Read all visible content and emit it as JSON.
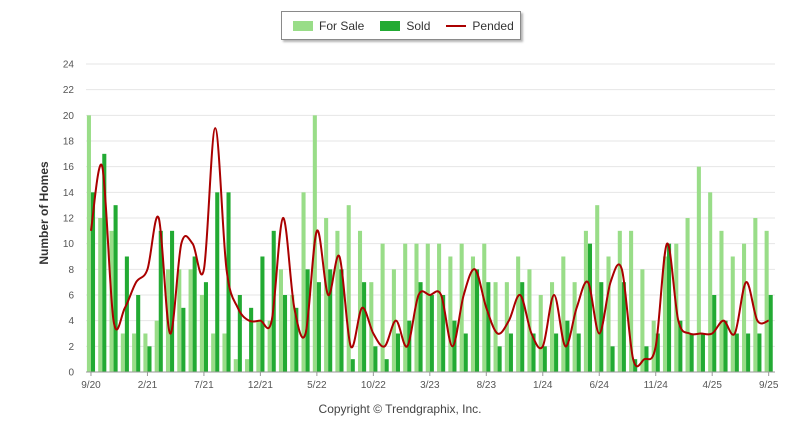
{
  "chart_data": {
    "type": "bar",
    "ylabel": "Number of Homes",
    "ylim": [
      0,
      24
    ],
    "yticks": [
      0,
      2,
      4,
      6,
      8,
      10,
      12,
      14,
      16,
      18,
      20,
      22,
      24
    ],
    "xtick_labels": [
      "9/20",
      "2/21",
      "7/21",
      "12/21",
      "5/22",
      "10/22",
      "3/23",
      "8/23",
      "1/24",
      "6/24",
      "11/24",
      "4/25",
      "9/25"
    ],
    "categories": [
      "Sep 2020",
      "Oct 2020",
      "Nov 2020",
      "Dec 2020",
      "Jan 2021",
      "Feb 2021",
      "Mar 2021",
      "Apr 2021",
      "May 2021",
      "Jun 2021",
      "Jul 2021",
      "Aug 2021",
      "Sep 2021",
      "Oct 2021",
      "Nov 2021",
      "Dec 2021",
      "Jan 2022",
      "Feb 2022",
      "Mar 2022",
      "Apr 2022",
      "May 2022",
      "Jun 2022",
      "Jul 2022",
      "Aug 2022",
      "Sep 2022",
      "Oct 2022",
      "Nov 2022",
      "Dec 2022",
      "Jan 2023",
      "Feb 2023",
      "Mar 2023",
      "Apr 2023",
      "May 2023",
      "Jun 2023",
      "Jul 2023",
      "Aug 2023",
      "Sep 2023",
      "Oct 2023",
      "Nov 2023",
      "Dec 2023",
      "Jan 2024",
      "Feb 2024",
      "Mar 2024",
      "Apr 2024",
      "May 2024",
      "Jun 2024",
      "Jul 2024",
      "Aug 2024",
      "Sep 2024",
      "Oct 2024",
      "Nov 2024",
      "Dec 2024",
      "Jan 2025",
      "Feb 2025",
      "Mar 2025",
      "Apr 2025",
      "May 2025",
      "Jun 2025",
      "Jul 2025",
      "Aug 2025",
      "Sep 2025"
    ],
    "series": [
      {
        "name": "For Sale",
        "type": "bar",
        "color": "#99dd88",
        "values": [
          20,
          12,
          11,
          3,
          3,
          3,
          4,
          8,
          8,
          8,
          6,
          3,
          3,
          1,
          1,
          4,
          4,
          8,
          6,
          14,
          20,
          12,
          11,
          13,
          11,
          7,
          10,
          8,
          10,
          10,
          10,
          10,
          9,
          10,
          9,
          10,
          7,
          7,
          9,
          8,
          6,
          7,
          9,
          7,
          11,
          13,
          9,
          11,
          11,
          8,
          4,
          9,
          10,
          12,
          16,
          14,
          11,
          9,
          10,
          12,
          11
        ]
      },
      {
        "name": "Sold",
        "type": "bar",
        "color": "#22aa33",
        "values": [
          14,
          17,
          13,
          9,
          6,
          2,
          11,
          11,
          5,
          9,
          7,
          14,
          14,
          6,
          5,
          9,
          11,
          6,
          5,
          8,
          7,
          8,
          8,
          1,
          7,
          2,
          1,
          3,
          4,
          7,
          6,
          6,
          4,
          3,
          8,
          7,
          2,
          3,
          7,
          3,
          2,
          3,
          4,
          3,
          10,
          7,
          2,
          7,
          1,
          2,
          3,
          10,
          4,
          3,
          3,
          6,
          4,
          3,
          3,
          3,
          6
        ]
      },
      {
        "name": "Pended",
        "type": "line",
        "color": "#aa0000",
        "values": [
          11,
          16,
          4,
          5,
          7,
          8,
          12,
          3,
          10,
          10,
          8,
          19,
          8,
          5,
          4,
          4,
          4,
          12,
          5,
          3,
          11,
          6,
          9,
          2,
          5,
          3,
          2,
          4,
          2,
          6,
          6,
          6,
          2,
          6,
          8,
          5,
          3,
          4,
          6,
          3,
          2,
          6,
          2,
          5,
          7,
          3,
          7,
          8,
          1,
          1,
          2,
          10,
          4,
          3,
          3,
          3,
          4,
          3,
          7,
          4,
          4
        ]
      }
    ],
    "grid": true,
    "legend_position": "top-center"
  },
  "copyright": "Copyright © Trendgraphix, Inc."
}
